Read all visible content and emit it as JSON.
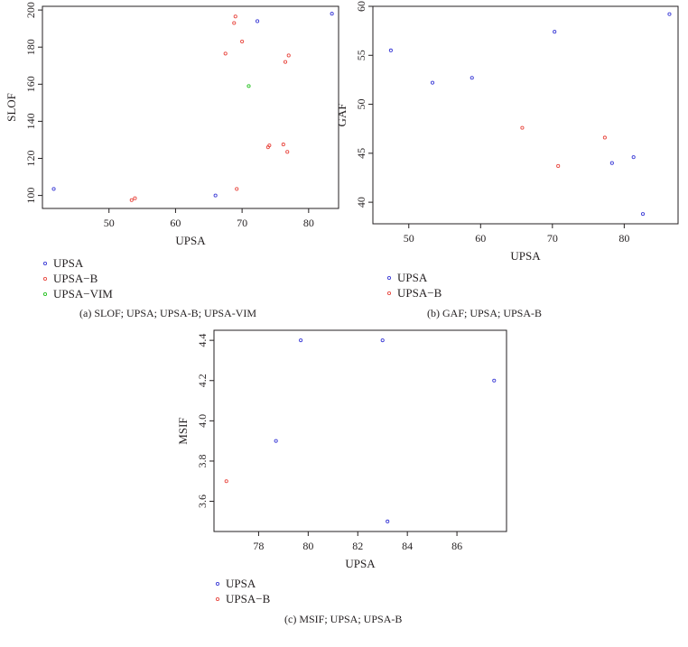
{
  "colors": {
    "UPSA": "#3b3bd6",
    "UPSA-B": "#e8473f",
    "UPSA-VIM": "#22c01e"
  },
  "chart_data": [
    {
      "type": "scatter",
      "xlabel": "UPSA",
      "ylabel": "SLOF",
      "xlim": [
        40,
        84.5
      ],
      "ylim": [
        93,
        202
      ],
      "xticks": [
        50,
        60,
        70,
        80
      ],
      "yticks": [
        100,
        120,
        140,
        160,
        180,
        200
      ],
      "grid": false,
      "legend_position": "bottom-left",
      "caption": "(a)  SLOF; UPSA; UPSA-B; UPSA-VIM",
      "series": [
        {
          "name": "UPSA",
          "points": [
            [
              41.7,
              103.5
            ],
            [
              66.0,
              100
            ],
            [
              72.3,
              194
            ],
            [
              83.5,
              198
            ]
          ]
        },
        {
          "name": "UPSA−B",
          "points": [
            [
              53.4,
              97.5
            ],
            [
              53.9,
              98.5
            ],
            [
              67.5,
              176.5
            ],
            [
              68.8,
              193
            ],
            [
              69.0,
              196.5
            ],
            [
              69.2,
              103.5
            ],
            [
              70.0,
              183
            ],
            [
              73.9,
              126
            ],
            [
              74.1,
              127
            ],
            [
              76.2,
              127.5
            ],
            [
              76.5,
              172
            ],
            [
              76.8,
              123.5
            ],
            [
              77.0,
              175.5
            ]
          ]
        },
        {
          "name": "UPSA−VIM",
          "points": [
            [
              71.0,
              159
            ]
          ]
        }
      ]
    },
    {
      "type": "scatter",
      "xlabel": "UPSA",
      "ylabel": "GAF",
      "xlim": [
        45,
        87.5
      ],
      "ylim": [
        37.8,
        60
      ],
      "xticks": [
        50,
        60,
        70,
        80
      ],
      "yticks": [
        40,
        45,
        50,
        55,
        60
      ],
      "grid": false,
      "legend_position": "bottom-left",
      "caption": "(b)  GAF; UPSA; UPSA-B",
      "series": [
        {
          "name": "UPSA",
          "points": [
            [
              47.5,
              55.5
            ],
            [
              53.3,
              52.2
            ],
            [
              58.8,
              52.7
            ],
            [
              70.3,
              57.4
            ],
            [
              78.3,
              44.0
            ],
            [
              81.3,
              44.6
            ],
            [
              82.6,
              38.8
            ],
            [
              86.3,
              59.2
            ]
          ]
        },
        {
          "name": "UPSA−B",
          "points": [
            [
              65.8,
              47.6
            ],
            [
              70.8,
              43.7
            ],
            [
              77.3,
              46.6
            ]
          ]
        }
      ]
    },
    {
      "type": "scatter",
      "xlabel": "UPSA",
      "ylabel": "MSIF",
      "xlim": [
        76.2,
        88
      ],
      "ylim": [
        3.45,
        4.45
      ],
      "xticks": [
        78,
        80,
        82,
        84,
        86
      ],
      "yticks": [
        3.6,
        3.8,
        4.0,
        4.2,
        4.4
      ],
      "grid": false,
      "legend_position": "bottom-left",
      "caption": "(c)  MSIF; UPSA; UPSA-B",
      "series": [
        {
          "name": "UPSA",
          "points": [
            [
              78.7,
              3.9
            ],
            [
              79.7,
              4.4
            ],
            [
              83.0,
              4.4
            ],
            [
              83.2,
              3.5
            ],
            [
              87.5,
              4.2
            ]
          ]
        },
        {
          "name": "UPSA−B",
          "points": [
            [
              76.7,
              3.7
            ]
          ]
        }
      ]
    }
  ]
}
